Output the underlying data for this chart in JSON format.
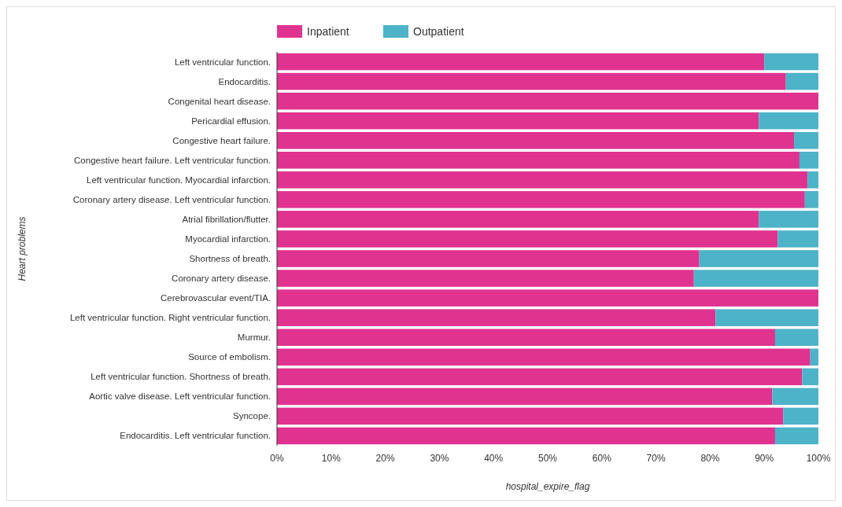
{
  "chart_data": {
    "type": "bar",
    "orientation": "horizontal",
    "stacked": true,
    "xlabel": "hospital_expire_flag",
    "ylabel": "Heart problems",
    "legend": "top",
    "grid": false,
    "categories": [
      "Left ventricular function.",
      "Endocarditis.",
      "Congenital heart disease.",
      "Pericardial effusion.",
      "Congestive heart failure.",
      "Congestive heart failure. Left ventricular function.",
      "Left ventricular function. Myocardial infarction.",
      "Coronary artery disease. Left ventricular function.",
      "Atrial fibrillation/flutter.",
      "Myocardial infarction.",
      "Shortness of breath.",
      "Coronary artery disease.",
      "Cerebrovascular event/TIA.",
      "Left ventricular function. Right ventricular function.",
      "Murmur.",
      "Source of embolism.",
      "Left ventricular function. Shortness of breath.",
      "Aortic valve disease. Left ventricular function.",
      "Syncope.",
      "Endocarditis. Left ventricular function."
    ],
    "series": [
      {
        "name": "Inpatient",
        "color": "#e0338f",
        "values": [
          90,
          94,
          100,
          89,
          95.5,
          96.5,
          98,
          97.5,
          89,
          92.5,
          78,
          77,
          100,
          81,
          92,
          98.5,
          97,
          91.5,
          93.5,
          92
        ]
      },
      {
        "name": "Outpatient",
        "color": "#4cb3c8",
        "values": [
          10,
          6,
          0,
          11,
          4.5,
          3.5,
          2,
          2.5,
          11,
          7.5,
          22,
          23,
          0,
          19,
          8,
          1.5,
          3,
          8.5,
          6.5,
          8
        ]
      }
    ],
    "xlim": [
      0,
      100
    ],
    "xticks": [
      {
        "value": 0,
        "label": "0%"
      },
      {
        "value": 10,
        "label": "10%"
      },
      {
        "value": 20,
        "label": "20%"
      },
      {
        "value": 30,
        "label": "30%"
      },
      {
        "value": 40,
        "label": "40%"
      },
      {
        "value": 50,
        "label": "50%"
      },
      {
        "value": 60,
        "label": "60%"
      },
      {
        "value": 70,
        "label": "70%"
      },
      {
        "value": 80,
        "label": "80%"
      },
      {
        "value": 90,
        "label": "90%"
      },
      {
        "value": 100,
        "label": "100%"
      }
    ]
  }
}
